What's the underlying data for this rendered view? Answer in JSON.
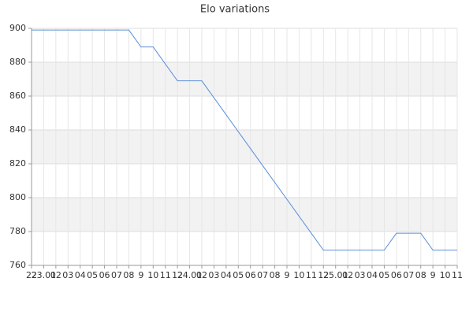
{
  "chart_data": {
    "type": "line",
    "title": "Elo variations",
    "categories": [
      "22",
      "23.01",
      "02",
      "03",
      "04",
      "05",
      "06",
      "07",
      "08",
      "9",
      "10",
      "11",
      "12",
      "24.01",
      "02",
      "03",
      "04",
      "05",
      "06",
      "07",
      "08",
      "9",
      "10",
      "11",
      "12",
      "25.01",
      "02",
      "03",
      "04",
      "05",
      "06",
      "07",
      "08",
      "9",
      "10",
      "11"
    ],
    "values": [
      899,
      899,
      899,
      899,
      899,
      899,
      899,
      899,
      899,
      889,
      889,
      879,
      869,
      869,
      869,
      859,
      849,
      839,
      829,
      819,
      809,
      799,
      789,
      779,
      769,
      769,
      769,
      769,
      769,
      769,
      779,
      779,
      779,
      769,
      769,
      769
    ],
    "color": "#5b8fd8",
    "ylim": [
      760,
      900
    ],
    "yticks": [
      760,
      780,
      800,
      820,
      840,
      860,
      880,
      900
    ],
    "grid": true,
    "alternate_bands": true
  }
}
